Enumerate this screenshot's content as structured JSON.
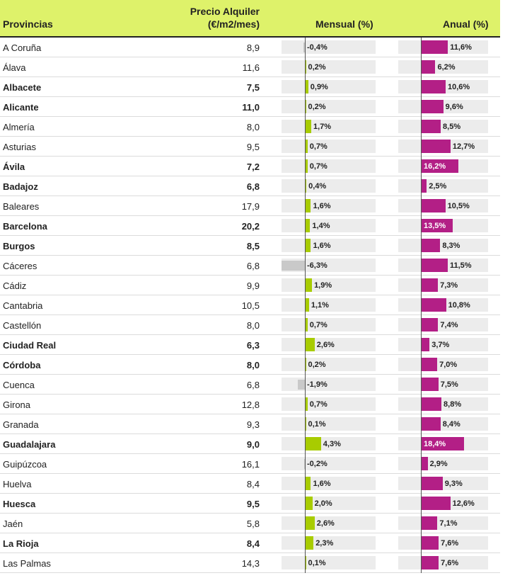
{
  "headers": {
    "provincias": "Provincias",
    "precio_line1": "Precio Alquiler",
    "precio_line2": "(€/m2/mes)",
    "mensual": "Mensual (%)",
    "anual": "Anual (%)"
  },
  "colors": {
    "header_bg": "#def26a",
    "mensual_positive": "#a8cc00",
    "mensual_negative": "#c9c9c9",
    "anual": "#b31f86",
    "track": "#ececec"
  },
  "chart_data": {
    "type": "table",
    "columns": [
      "Provincias",
      "Precio Alquiler (€/m2/mes)",
      "Mensual (%)",
      "Anual (%)"
    ],
    "rows": [
      {
        "provincia": "A Coruña",
        "precio": "8,9",
        "mensual": -0.4,
        "mensual_label": "-0,4%",
        "anual": 11.6,
        "anual_label": "11,6%",
        "bold": false
      },
      {
        "provincia": "Álava",
        "precio": "11,6",
        "mensual": 0.2,
        "mensual_label": "0,2%",
        "anual": 6.2,
        "anual_label": "6,2%",
        "bold": false
      },
      {
        "provincia": "Albacete",
        "precio": "7,5",
        "mensual": 0.9,
        "mensual_label": "0,9%",
        "anual": 10.6,
        "anual_label": "10,6%",
        "bold": true
      },
      {
        "provincia": "Alicante",
        "precio": "11,0",
        "mensual": 0.2,
        "mensual_label": "0,2%",
        "anual": 9.6,
        "anual_label": "9,6%",
        "bold": true
      },
      {
        "provincia": "Almería",
        "precio": "8,0",
        "mensual": 1.7,
        "mensual_label": "1,7%",
        "anual": 8.5,
        "anual_label": "8,5%",
        "bold": false
      },
      {
        "provincia": "Asturias",
        "precio": "9,5",
        "mensual": 0.7,
        "mensual_label": "0,7%",
        "anual": 12.7,
        "anual_label": "12,7%",
        "bold": false
      },
      {
        "provincia": "Ávila",
        "precio": "7,2",
        "mensual": 0.7,
        "mensual_label": "0,7%",
        "anual": 16.2,
        "anual_label": "16,2%",
        "bold": true
      },
      {
        "provincia": "Badajoz",
        "precio": "6,8",
        "mensual": 0.4,
        "mensual_label": "0,4%",
        "anual": 2.5,
        "anual_label": "2,5%",
        "bold": true
      },
      {
        "provincia": "Baleares",
        "precio": "17,9",
        "mensual": 1.6,
        "mensual_label": "1,6%",
        "anual": 10.5,
        "anual_label": "10,5%",
        "bold": false
      },
      {
        "provincia": "Barcelona",
        "precio": "20,2",
        "mensual": 1.4,
        "mensual_label": "1,4%",
        "anual": 13.5,
        "anual_label": "13,5%",
        "bold": true
      },
      {
        "provincia": "Burgos",
        "precio": "8,5",
        "mensual": 1.6,
        "mensual_label": "1,6%",
        "anual": 8.3,
        "anual_label": "8,3%",
        "bold": true
      },
      {
        "provincia": "Cáceres",
        "precio": "6,8",
        "mensual": -6.3,
        "mensual_label": "-6,3%",
        "anual": 11.5,
        "anual_label": "11,5%",
        "bold": false
      },
      {
        "provincia": "Cádiz",
        "precio": "9,9",
        "mensual": 1.9,
        "mensual_label": "1,9%",
        "anual": 7.3,
        "anual_label": "7,3%",
        "bold": false
      },
      {
        "provincia": "Cantabria",
        "precio": "10,5",
        "mensual": 1.1,
        "mensual_label": "1,1%",
        "anual": 10.8,
        "anual_label": "10,8%",
        "bold": false
      },
      {
        "provincia": "Castellón",
        "precio": "8,0",
        "mensual": 0.7,
        "mensual_label": "0,7%",
        "anual": 7.4,
        "anual_label": "7,4%",
        "bold": false
      },
      {
        "provincia": "Ciudad Real",
        "precio": "6,3",
        "mensual": 2.6,
        "mensual_label": "2,6%",
        "anual": 3.7,
        "anual_label": "3,7%",
        "bold": true
      },
      {
        "provincia": "Córdoba",
        "precio": "8,0",
        "mensual": 0.2,
        "mensual_label": "0,2%",
        "anual": 7.0,
        "anual_label": "7,0%",
        "bold": true
      },
      {
        "provincia": "Cuenca",
        "precio": "6,8",
        "mensual": -1.9,
        "mensual_label": "-1,9%",
        "anual": 7.5,
        "anual_label": "7,5%",
        "bold": false
      },
      {
        "provincia": "Girona",
        "precio": "12,8",
        "mensual": 0.7,
        "mensual_label": "0,7%",
        "anual": 8.8,
        "anual_label": "8,8%",
        "bold": false
      },
      {
        "provincia": "Granada",
        "precio": "9,3",
        "mensual": 0.1,
        "mensual_label": "0,1%",
        "anual": 8.4,
        "anual_label": "8,4%",
        "bold": false
      },
      {
        "provincia": "Guadalajara",
        "precio": "9,0",
        "mensual": 4.3,
        "mensual_label": "4,3%",
        "anual": 18.4,
        "anual_label": "18,4%",
        "bold": true
      },
      {
        "provincia": "Guipúzcoa",
        "precio": "16,1",
        "mensual": -0.2,
        "mensual_label": "-0,2%",
        "anual": 2.9,
        "anual_label": "2,9%",
        "bold": false
      },
      {
        "provincia": "Huelva",
        "precio": "8,4",
        "mensual": 1.6,
        "mensual_label": "1,6%",
        "anual": 9.3,
        "anual_label": "9,3%",
        "bold": false
      },
      {
        "provincia": "Huesca",
        "precio": "9,5",
        "mensual": 2.0,
        "mensual_label": "2,0%",
        "anual": 12.6,
        "anual_label": "12,6%",
        "bold": true
      },
      {
        "provincia": "Jaén",
        "precio": "5,8",
        "mensual": 2.6,
        "mensual_label": "2,6%",
        "anual": 7.1,
        "anual_label": "7,1%",
        "bold": false
      },
      {
        "provincia": "La Rioja",
        "precio": "8,4",
        "mensual": 2.3,
        "mensual_label": "2,3%",
        "anual": 7.6,
        "anual_label": "7,6%",
        "bold": true
      },
      {
        "provincia": "Las Palmas",
        "precio": "14,3",
        "mensual": 0.1,
        "mensual_label": "0,1%",
        "anual": 7.6,
        "anual_label": "7,6%",
        "bold": false
      }
    ]
  }
}
